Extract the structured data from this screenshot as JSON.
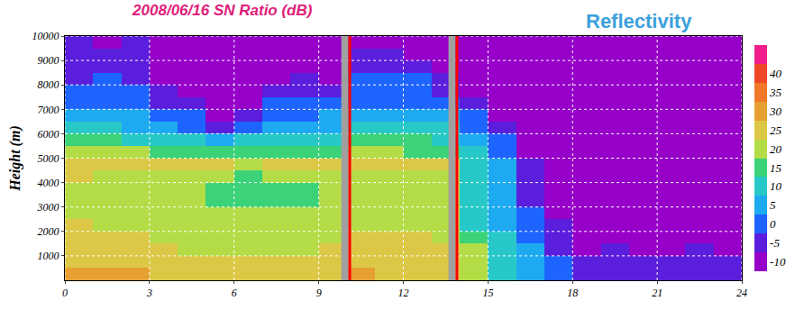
{
  "chart_data": {
    "type": "heatmap",
    "title": "2008/06/16 SN Ratio (dB)",
    "annotations": [
      "Reflectivity"
    ],
    "y_label": "Height (m)",
    "x": [
      0.5,
      1.5,
      2.5,
      3.5,
      4.5,
      5.5,
      6.5,
      7.5,
      8.5,
      9.5,
      10.5,
      11.5,
      12.5,
      13.5,
      14.5,
      15.5,
      16.5,
      17.5,
      18.5,
      19.5,
      20.5,
      21.5,
      22.5,
      23.5
    ],
    "y": [
      250,
      750,
      1250,
      1750,
      2250,
      2750,
      3250,
      3750,
      4250,
      4750,
      5250,
      5750,
      6250,
      6750,
      7250,
      7750,
      8250,
      8750,
      9250,
      9750
    ],
    "z": [
      [
        30,
        28,
        28,
        27,
        27,
        26,
        25,
        26,
        26,
        26,
        28,
        27,
        27,
        26,
        22,
        10,
        5,
        0,
        -5,
        -5,
        -5,
        -5,
        -5,
        -5
      ],
      [
        27,
        25,
        25,
        25,
        24,
        24,
        23,
        24,
        24,
        24,
        25,
        25,
        25,
        24,
        20,
        10,
        5,
        0,
        -5,
        -5,
        -5,
        -5,
        -5,
        -5
      ],
      [
        25,
        24,
        24,
        23,
        22,
        22,
        22,
        22,
        22,
        23,
        24,
        24,
        24,
        23,
        18,
        8,
        5,
        -5,
        -10,
        -5,
        -10,
        -10,
        -5,
        -10
      ],
      [
        24,
        23,
        23,
        22,
        22,
        21,
        21,
        21,
        21,
        22,
        23,
        23,
        23,
        22,
        15,
        8,
        2,
        -5,
        -10,
        -10,
        -10,
        -10,
        -10,
        -10
      ],
      [
        23,
        22,
        22,
        21,
        21,
        20,
        20,
        20,
        20,
        21,
        22,
        22,
        22,
        21,
        12,
        7,
        0,
        -5,
        -10,
        -10,
        -10,
        -10,
        -10,
        -10
      ],
      [
        22,
        22,
        21,
        21,
        20,
        19,
        19,
        19,
        19,
        20,
        21,
        21,
        21,
        20,
        10,
        6,
        0,
        -10,
        -10,
        -10,
        -10,
        -10,
        -10,
        -10
      ],
      [
        22,
        21,
        21,
        20,
        19,
        17,
        16,
        16,
        17,
        19,
        21,
        21,
        21,
        20,
        10,
        5,
        -5,
        -10,
        -10,
        -10,
        -10,
        -10,
        -10,
        -10
      ],
      [
        22,
        21,
        20,
        19,
        18,
        16,
        14,
        14,
        15,
        18,
        20,
        21,
        20,
        20,
        10,
        5,
        -5,
        -10,
        -10,
        -10,
        -10,
        -10,
        -10,
        -10
      ],
      [
        23,
        22,
        22,
        21,
        20,
        18,
        17,
        18,
        18,
        20,
        22,
        22,
        22,
        21,
        10,
        5,
        -5,
        -10,
        -10,
        -10,
        -10,
        -10,
        -10,
        -10
      ],
      [
        26,
        25,
        25,
        25,
        24,
        23,
        22,
        23,
        23,
        24,
        26,
        26,
        25,
        25,
        12,
        5,
        -5,
        -10,
        -10,
        -10,
        -10,
        -10,
        -10,
        -10
      ],
      [
        20,
        19,
        18,
        17,
        15,
        14,
        14,
        15,
        15,
        16,
        18,
        18,
        17,
        16,
        8,
        2,
        -10,
        -10,
        -10,
        -10,
        -10,
        -10,
        -10,
        -10
      ],
      [
        14,
        13,
        12,
        10,
        8,
        5,
        8,
        10,
        10,
        12,
        14,
        14,
        13,
        12,
        5,
        0,
        -10,
        -10,
        -10,
        -10,
        -10,
        -10,
        -10,
        -10
      ],
      [
        8,
        8,
        7,
        5,
        2,
        -5,
        0,
        5,
        5,
        6,
        10,
        10,
        9,
        8,
        2,
        -5,
        -10,
        -10,
        -10,
        -10,
        -10,
        -10,
        -10,
        -10
      ],
      [
        5,
        5,
        4,
        2,
        0,
        -10,
        -5,
        2,
        2,
        3,
        6,
        6,
        5,
        4,
        0,
        -10,
        -10,
        -10,
        -10,
        -10,
        -10,
        -10,
        -10,
        -10
      ],
      [
        0,
        2,
        0,
        -5,
        -5,
        -10,
        -10,
        0,
        0,
        0,
        2,
        2,
        2,
        0,
        -5,
        -10,
        -10,
        -10,
        -10,
        -10,
        -10,
        -10,
        -10,
        -10
      ],
      [
        -2,
        0,
        -2,
        -5,
        -10,
        -10,
        -10,
        -5,
        -5,
        -5,
        0,
        0,
        0,
        -5,
        -10,
        -10,
        -10,
        -10,
        -10,
        -10,
        -10,
        -10,
        -10,
        -10
      ],
      [
        -5,
        -2,
        -5,
        -10,
        -10,
        -10,
        -10,
        -10,
        -5,
        -10,
        -2,
        -2,
        -2,
        -5,
        -10,
        -10,
        -10,
        -10,
        -10,
        -10,
        -10,
        -10,
        -10,
        -10
      ],
      [
        -5,
        -5,
        -5,
        -10,
        -10,
        -10,
        -10,
        -10,
        -10,
        -10,
        -5,
        -5,
        -5,
        -10,
        -10,
        -10,
        -10,
        -10,
        -10,
        -10,
        -10,
        -10,
        -10,
        -10
      ],
      [
        -5,
        -5,
        -5,
        -10,
        -10,
        -10,
        -10,
        -10,
        -10,
        -10,
        -5,
        -5,
        -10,
        -10,
        -10,
        -10,
        -10,
        -10,
        -10,
        -10,
        -10,
        -10,
        -10,
        -10
      ],
      [
        -5,
        -10,
        -5,
        -10,
        -10,
        -10,
        -10,
        -10,
        -10,
        -10,
        -10,
        -10,
        -10,
        -10,
        -10,
        -10,
        -10,
        -10,
        -10,
        -10,
        -10,
        -10,
        -10,
        -10
      ]
    ],
    "xlim": [
      0,
      24
    ],
    "xticks": [
      0,
      3,
      6,
      9,
      12,
      15,
      18,
      21,
      24
    ],
    "ylim": [
      0,
      10000
    ],
    "yticks": [
      1000,
      2000,
      3000,
      4000,
      5000,
      6000,
      7000,
      8000,
      9000,
      10000
    ],
    "colorbar": {
      "range": [
        -12.5,
        47.5
      ],
      "ticks": [
        -10,
        -5,
        0,
        5,
        10,
        15,
        20,
        25,
        30,
        35,
        40
      ],
      "colors": [
        "#9600c8",
        "#5a1edc",
        "#1e64ff",
        "#1eaaf0",
        "#28c8c8",
        "#3cd278",
        "#b4dc46",
        "#dcc846",
        "#e6a032",
        "#f07828",
        "#f04628",
        "#f01e8c"
      ]
    },
    "vertical_lines": [
      {
        "x": 10.1,
        "color": "#ff0000"
      },
      {
        "x": 13.9,
        "color": "#ff0000"
      }
    ],
    "data_gaps": [
      [
        9.8,
        10.05
      ],
      [
        13.6,
        13.85
      ]
    ],
    "grid": true
  }
}
